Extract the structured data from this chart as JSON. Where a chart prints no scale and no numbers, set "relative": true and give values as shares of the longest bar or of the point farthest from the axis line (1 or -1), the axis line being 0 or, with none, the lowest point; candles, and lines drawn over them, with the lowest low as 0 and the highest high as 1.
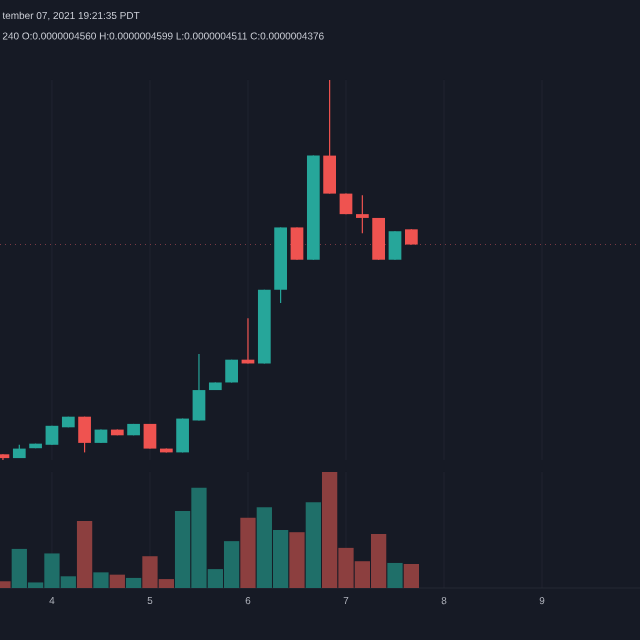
{
  "chart_data": [
    {
      "type": "candlestick",
      "relative": true,
      "grid": "x",
      "tick_labels": false,
      "annotations": [
        "tember 07, 2021 19:21:35 PDT",
        "240 O:0.0000004560 H:0.0000004599 L:0.0000004511 C:0.0000004376"
      ],
      "x": [
        3.5,
        3.667,
        3.833,
        4,
        4.167,
        4.333,
        4.5,
        4.667,
        4.833,
        5,
        5.167,
        5.333,
        5.5,
        5.667,
        5.833,
        6,
        6.167,
        6.333,
        6.5,
        6.667,
        6.833,
        7,
        7.167,
        7.333,
        7.5,
        7.667
      ],
      "xlim": [
        3.47,
        10
      ],
      "xticks": [
        4,
        5,
        6,
        7,
        8,
        9
      ],
      "ohlc": [
        [
          0.015,
          0.015,
          0,
          0.005
        ],
        [
          0.005,
          0.04,
          0.005,
          0.03
        ],
        [
          0.031,
          0.043,
          0.031,
          0.043
        ],
        [
          0.04,
          0.09,
          0.04,
          0.09
        ],
        [
          0.086,
          0.114,
          0.086,
          0.114
        ],
        [
          0.114,
          0.114,
          0.02,
          0.045
        ],
        [
          0.045,
          0.08,
          0.045,
          0.08
        ],
        [
          0.08,
          0.08,
          0.065,
          0.065
        ],
        [
          0.065,
          0.095,
          0.065,
          0.095
        ],
        [
          0.095,
          0.095,
          0.03,
          0.03
        ],
        [
          0.03,
          0.03,
          0.02,
          0.02
        ],
        [
          0.02,
          0.109,
          0.02,
          0.109
        ],
        [
          0.104,
          0.279,
          0.104,
          0.184
        ],
        [
          0.184,
          0.204,
          0.184,
          0.204
        ],
        [
          0.204,
          0.264,
          0.204,
          0.264
        ],
        [
          0.264,
          0.373,
          0.254,
          0.254
        ],
        [
          0.254,
          0.448,
          0.254,
          0.448
        ],
        [
          0.448,
          0.612,
          0.413,
          0.612
        ],
        [
          0.612,
          0.612,
          0.527,
          0.527
        ],
        [
          0.527,
          0.801,
          0.527,
          0.801
        ],
        [
          0.801,
          1,
          0.701,
          0.701
        ],
        [
          0.701,
          0.701,
          0.647,
          0.647
        ],
        [
          0.647,
          0.697,
          0.597,
          0.637
        ],
        [
          0.637,
          0.637,
          0.527,
          0.527
        ],
        [
          0.527,
          0.602,
          0.527,
          0.602
        ],
        [
          0.607,
          0.607,
          0.567,
          0.567
        ]
      ],
      "colors": [
        "#ef5350",
        "#26a69a",
        "#26a69a",
        "#26a69a",
        "#26a69a",
        "#ef5350",
        "#26a69a",
        "#ef5350",
        "#26a69a",
        "#ef5350",
        "#ef5350",
        "#26a69a",
        "#26a69a",
        "#26a69a",
        "#26a69a",
        "#ef5350",
        "#26a69a",
        "#26a69a",
        "#ef5350",
        "#26a69a",
        "#ef5350",
        "#ef5350",
        "#ef5350",
        "#ef5350",
        "#26a69a",
        "#ef5350"
      ],
      "ref_lines": [
        {
          "axis": "y",
          "value": 0.567,
          "color": "#7a3a44",
          "line_style": "dotted"
        }
      ]
    },
    {
      "type": "bar",
      "relative": true,
      "grid": "x",
      "tick_labels": "x",
      "x": [
        3.5,
        3.667,
        3.833,
        4,
        4.167,
        4.333,
        4.5,
        4.667,
        4.833,
        5,
        5.167,
        5.333,
        5.5,
        5.667,
        5.833,
        6,
        6.167,
        6.333,
        6.5,
        6.667,
        6.833,
        7,
        7.167,
        7.333,
        7.5,
        7.667
      ],
      "xlim": [
        3.47,
        10
      ],
      "xticks": [
        4,
        5,
        6,
        7,
        8,
        9
      ],
      "values": [
        0.058,
        0.337,
        0.048,
        0.298,
        0.101,
        0.577,
        0.135,
        0.115,
        0.087,
        0.274,
        0.077,
        0.663,
        0.865,
        0.163,
        0.404,
        0.606,
        0.697,
        0.5,
        0.481,
        0.74,
        1,
        0.346,
        0.231,
        0.466,
        0.216,
        0.207
      ],
      "colors": [
        "#8c3f3f",
        "#1f6f69",
        "#1f6f69",
        "#1f6f69",
        "#1f6f69",
        "#8c3f3f",
        "#1f6f69",
        "#8c3f3f",
        "#1f6f69",
        "#8c3f3f",
        "#8c3f3f",
        "#1f6f69",
        "#1f6f69",
        "#1f6f69",
        "#1f6f69",
        "#8c3f3f",
        "#1f6f69",
        "#1f6f69",
        "#8c3f3f",
        "#1f6f69",
        "#8c3f3f",
        "#8c3f3f",
        "#8c3f3f",
        "#8c3f3f",
        "#1f6f69",
        "#8c3f3f"
      ]
    }
  ]
}
